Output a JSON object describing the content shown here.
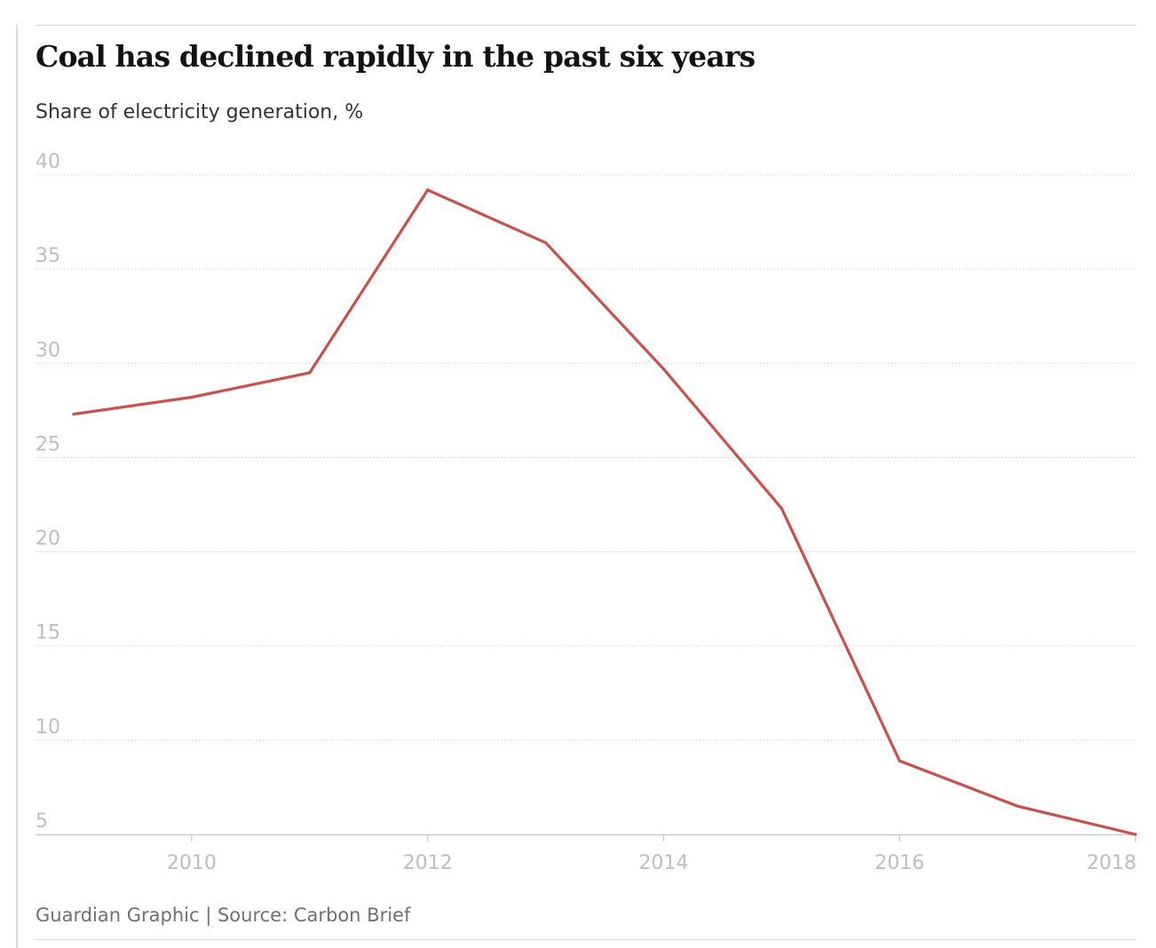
{
  "header": {
    "title": "Coal has declined rapidly in the past six years",
    "subtitle": "Share of electricity generation, %"
  },
  "footer": {
    "source": "Guardian Graphic | Source: Carbon Brief"
  },
  "colors": {
    "line": "#c9504b",
    "grid": "#cccccc",
    "axis": "#cccccc",
    "tick_text": "#bdbdbd"
  },
  "chart_data": {
    "type": "line",
    "title": "Coal has declined rapidly in the past six years",
    "subtitle": "Share of electricity generation, %",
    "xlabel": "",
    "ylabel": "",
    "xlim": [
      2009,
      2018
    ],
    "ylim": [
      5,
      40
    ],
    "yticks": [
      40,
      35,
      30,
      25,
      20,
      15,
      10,
      5
    ],
    "xticks": [
      2010,
      2012,
      2014,
      2016,
      2018
    ],
    "grid": "horizontal dotted",
    "legend": "none",
    "series": [
      {
        "x": [
          2009,
          2010,
          2011,
          2012,
          2013,
          2014,
          2015,
          2016,
          2017,
          2018
        ],
        "values": [
          27.3,
          28.2,
          29.5,
          39.2,
          36.4,
          29.7,
          22.3,
          8.9,
          6.5,
          5.0
        ]
      }
    ]
  }
}
